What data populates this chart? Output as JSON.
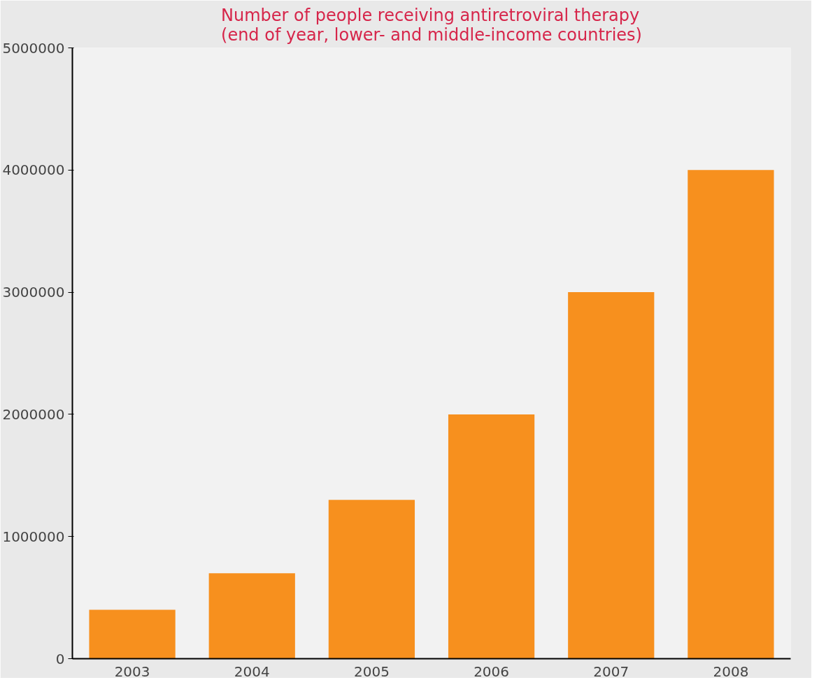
{
  "chart_data": {
    "type": "bar",
    "title": "Number of people receiving antiretroviral therapy\n(end of year, lower- and middle-income countries)",
    "categories": [
      "2003",
      "2004",
      "2005",
      "2006",
      "2007",
      "2008"
    ],
    "values": [
      400000,
      700000,
      1300000,
      2000000,
      3000000,
      4000000
    ],
    "color": "#f7901e",
    "ylim": [
      0,
      5000000
    ],
    "yticks": [
      0,
      1000000,
      2000000,
      3000000,
      4000000,
      5000000
    ],
    "grid": false
  }
}
